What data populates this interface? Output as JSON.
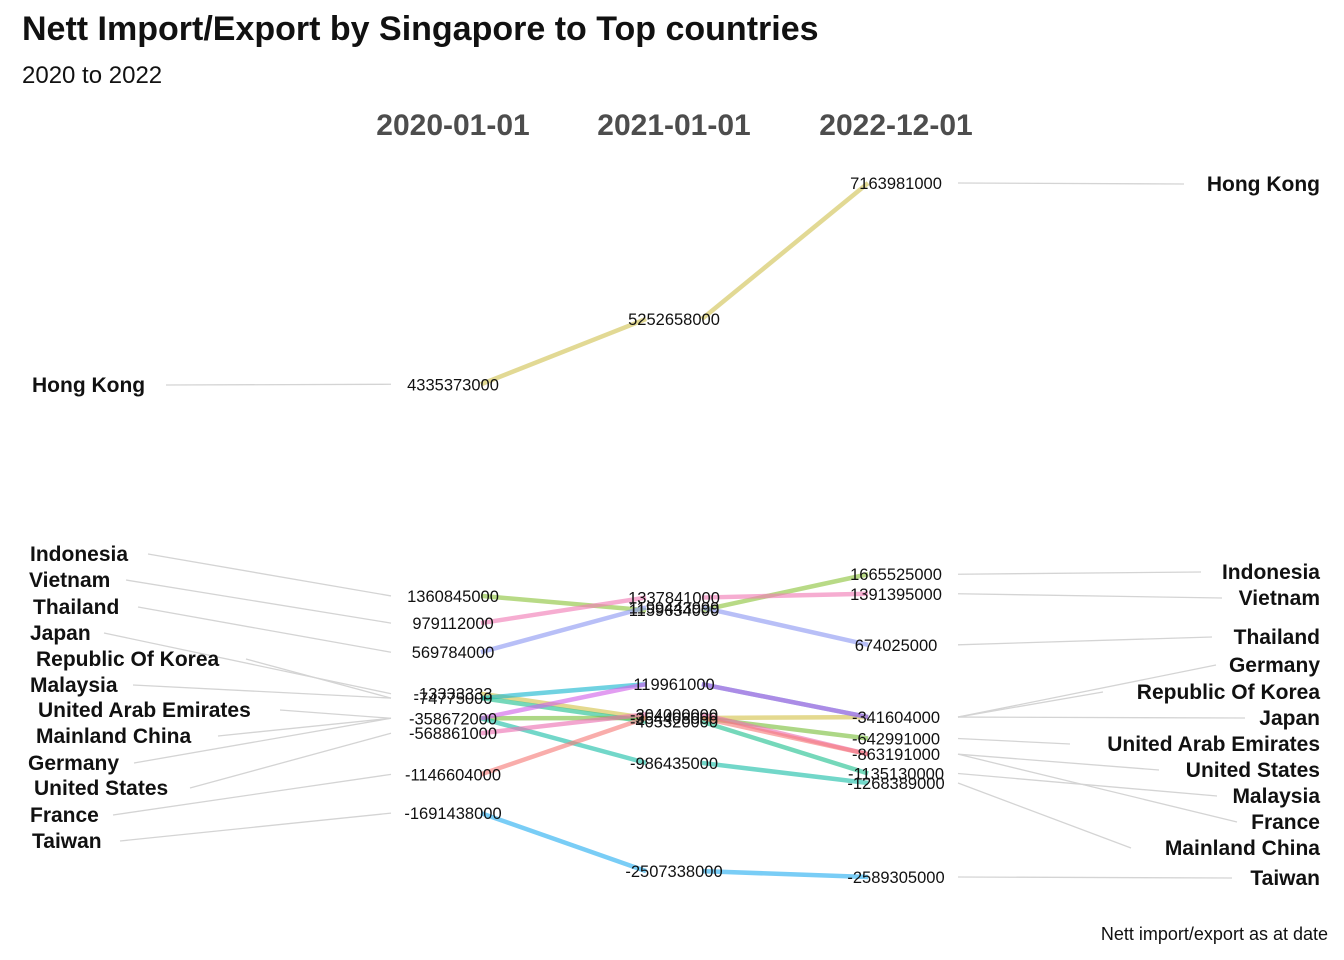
{
  "title": "Nett Import/Export by Singapore to Top countries",
  "subtitle": "2020 to 2022",
  "caption": "Nett import/export as at date",
  "chart_data": {
    "type": "line",
    "chart_style": "slopegraph",
    "categories": [
      "2020-01-01",
      "2021-01-01",
      "2022-12-01"
    ],
    "series": [
      {
        "name": "Hong Kong",
        "values": [
          4335373000,
          5252658000,
          7163981000
        ],
        "color": "#d1c153"
      },
      {
        "name": "Indonesia",
        "values": [
          1360845000,
          1159634000,
          1665525000
        ],
        "color": "#8dc33b"
      },
      {
        "name": "Vietnam",
        "values": [
          979112000,
          1337841000,
          1391395000
        ],
        "color": "#f07ab4"
      },
      {
        "name": "Thailand",
        "values": [
          569784000,
          1199443999,
          674025000
        ],
        "color": "#8d97f2"
      },
      {
        "name": "Japan",
        "values": [
          -13333333,
          -354408000,
          -341604000
        ],
        "color": "#d4c24a"
      },
      {
        "name": "Republic Of Korea",
        "values": [
          -74775000,
          119961000,
          -341604000
        ],
        "color": "#19b6cf"
      },
      {
        "name": "Malaysia",
        "values": [
          -74775000,
          -405320000,
          -1135130000
        ],
        "color": "#20c090"
      },
      {
        "name": "United Arab Emirates",
        "values": [
          -358672000,
          -354408000,
          -642991000
        ],
        "color": "#7bbf3c"
      },
      {
        "name": "Mainland China",
        "values": [
          -358672000,
          -986435000,
          -1268389000
        ],
        "color": "#1cbfa8"
      },
      {
        "name": "Germany",
        "values": [
          -358672000,
          119961000,
          -341604000
        ],
        "color": "#d061e8"
      },
      {
        "name": "United States",
        "values": [
          -568861000,
          -304000000,
          -863191000
        ],
        "color": "#ec6fb2"
      },
      {
        "name": "France",
        "values": [
          -1146604000,
          -354408000,
          -863191000
        ],
        "color": "#f57a78"
      },
      {
        "name": "Taiwan",
        "values": [
          -1691438000,
          -2507338000,
          -2589305000
        ],
        "color": "#27aef0"
      }
    ],
    "point_labels": {
      "2020-01-01": [
        "4335373000",
        "1360845000",
        "979112000",
        "569784000",
        "-13333333",
        "-74775000",
        "-358672000",
        "-568861000",
        "-1146604000",
        "-1691438000"
      ],
      "2021-01-01": [
        "5252658000",
        "1337841000",
        "1199443999",
        "1159634000",
        "119961000",
        "-304000000",
        "-354408000",
        "-405320000",
        "-986435000",
        "-2507338000"
      ],
      "2022-12-01": [
        "7163981000",
        "1665525000",
        "1391395000",
        "674025000",
        "-341604000",
        "-642991000",
        "-863191000",
        "-1135130000",
        "-1268389000",
        "-2589305000"
      ]
    },
    "left_labels": [
      "Hong Kong",
      "Indonesia",
      "Vietnam",
      "Thailand",
      "Japan",
      "Republic Of Korea",
      "Malaysia",
      "United Arab Emirates",
      "Mainland China",
      "Germany",
      "United States",
      "France",
      "Taiwan"
    ],
    "right_labels": [
      "Hong Kong",
      "Indonesia",
      "Vietnam",
      "Thailand",
      "Germany",
      "Republic Of Korea",
      "Japan",
      "United Arab Emirates",
      "United States",
      "Malaysia",
      "France",
      "Mainland China",
      "Taiwan"
    ],
    "grid": false,
    "legend": "none"
  }
}
